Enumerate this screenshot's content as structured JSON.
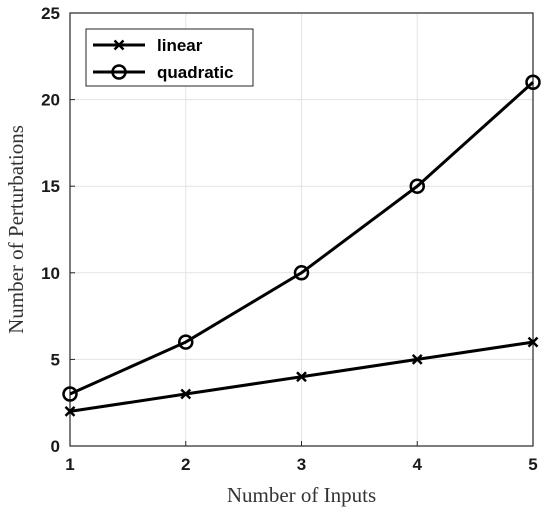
{
  "chart_data": {
    "type": "line",
    "title": "",
    "xlabel": "Number of Inputs",
    "ylabel": "Number of Perturbations",
    "x": [
      1,
      2,
      3,
      4,
      5
    ],
    "xlim": [
      1,
      5
    ],
    "ylim": [
      0,
      25
    ],
    "xticks": [
      "1",
      "2",
      "3",
      "4",
      "5"
    ],
    "yticks": [
      "0",
      "5",
      "10",
      "15",
      "20",
      "25"
    ],
    "grid": true,
    "legend_position": "top-left",
    "series": [
      {
        "name": "linear",
        "marker": "x",
        "color": "#000000",
        "values": [
          2,
          3,
          4,
          5,
          6
        ]
      },
      {
        "name": "quadratic",
        "marker": "circle",
        "color": "#000000",
        "values": [
          3,
          6,
          10,
          15,
          21
        ]
      }
    ]
  }
}
